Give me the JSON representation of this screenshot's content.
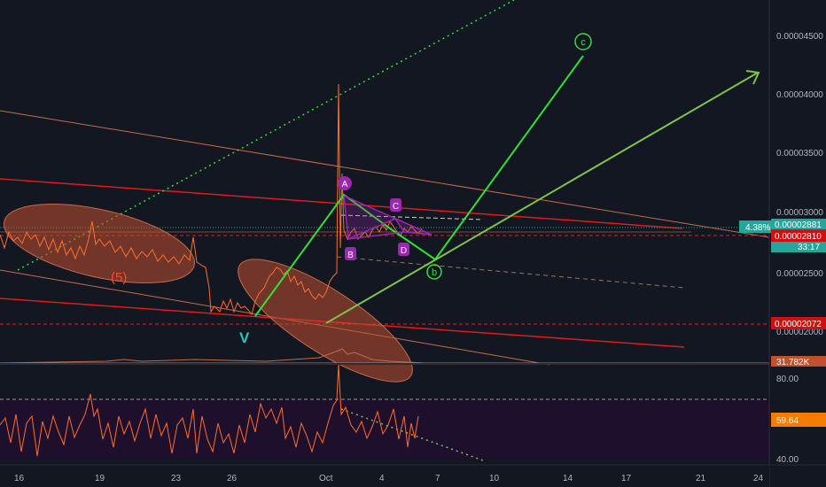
{
  "price_axis": {
    "labels": [
      "0.00004500",
      "0.00004000",
      "0.00003500",
      "0.00003000",
      "0.00002500",
      "0.00002000"
    ]
  },
  "price_badges": {
    "change_pct": "4.38%",
    "last_price_top": "0.00002881",
    "last_price": "0.00002810",
    "countdown": "33:17",
    "support_price": "0.00002072",
    "volume": "31.782K"
  },
  "rsi_axis": {
    "labels": [
      "80.00",
      "40.00"
    ],
    "current_value": "59.64"
  },
  "time_axis": {
    "labels": [
      "16",
      "19",
      "23",
      "26",
      "Oct",
      "4",
      "7",
      "10",
      "14",
      "17",
      "21",
      "24"
    ]
  },
  "wave_labels": {
    "wave5": "(5)",
    "wave_v": "V",
    "a": "A",
    "b": "B",
    "c": "C",
    "d": "D",
    "small_b": "b",
    "small_c": "c"
  },
  "colors": {
    "background": "#131722",
    "price_line": "#ff6d2d",
    "green_wave": "#33e033",
    "purple_pattern": "#9c27b0",
    "red_trendline": "#e01b1b",
    "fib_line": "#c76b4a",
    "ellipse_fill": "#c0502f",
    "rsi_band": "#1e0f2d",
    "teal_badge": "#26a69a",
    "orange_badge": "#f57c00",
    "red_badge": "#d01010"
  }
}
